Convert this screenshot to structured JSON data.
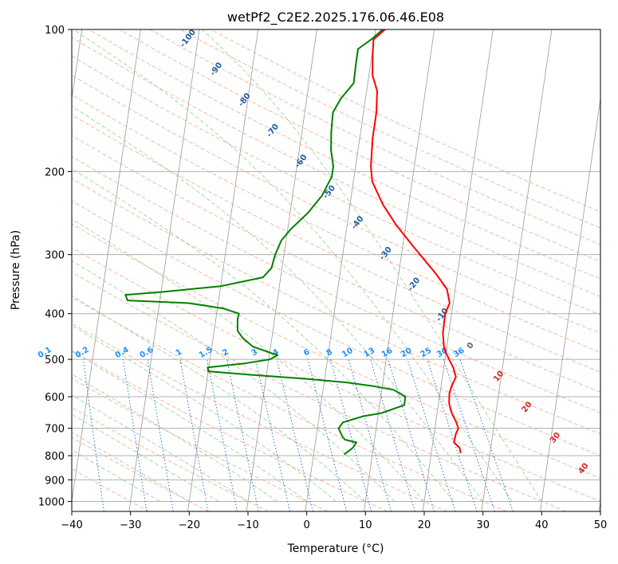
{
  "chart_data": {
    "type": "line",
    "title": "wetPf2_C2E2.2025.176.06.46.E08",
    "xlabel": "Temperature (°C)",
    "ylabel": "Pressure (hPa)",
    "xlim": [
      -40,
      50
    ],
    "ylim": [
      1050,
      100
    ],
    "y_scale": "log",
    "grid": true,
    "x_ticks": [
      -40,
      -30,
      -20,
      -10,
      0,
      10,
      20,
      30,
      40,
      50
    ],
    "y_ticks": [
      100,
      200,
      300,
      400,
      500,
      600,
      700,
      800,
      900,
      1000
    ],
    "series": [
      {
        "color": "#ff0000",
        "points": [
          [
            25.0,
            790
          ],
          [
            24.7,
            770
          ],
          [
            23.6,
            750
          ],
          [
            23.7,
            720
          ],
          [
            24.0,
            700
          ],
          [
            23.5,
            680
          ],
          [
            22.5,
            650
          ],
          [
            21.8,
            620
          ],
          [
            21.6,
            590
          ],
          [
            21.8,
            570
          ],
          [
            22.3,
            545
          ],
          [
            21.6,
            520
          ],
          [
            20.7,
            500
          ],
          [
            19.6,
            475
          ],
          [
            19.0,
            440
          ],
          [
            18.9,
            400
          ],
          [
            19.4,
            380
          ],
          [
            18.6,
            355
          ],
          [
            16.4,
            330
          ],
          [
            12.0,
            290
          ],
          [
            8.4,
            260
          ],
          [
            5.6,
            235
          ],
          [
            3.2,
            210
          ],
          [
            2.6,
            195
          ],
          [
            2.2,
            170
          ],
          [
            2.2,
            150
          ],
          [
            1.8,
            135
          ],
          [
            0.6,
            125
          ],
          [
            0.1,
            112
          ],
          [
            -0.1,
            105
          ],
          [
            1.6,
            100
          ]
        ]
      },
      {
        "color": "#008000",
        "points": [
          [
            5.2,
            795
          ],
          [
            6.5,
            770
          ],
          [
            7.0,
            750
          ],
          [
            5.0,
            740
          ],
          [
            4.5,
            730
          ],
          [
            3.6,
            700
          ],
          [
            4.2,
            680
          ],
          [
            7.5,
            660
          ],
          [
            10.5,
            650
          ],
          [
            14.2,
            625
          ],
          [
            14.2,
            600
          ],
          [
            12.0,
            580
          ],
          [
            8.5,
            570
          ],
          [
            4.0,
            560
          ],
          [
            -3.0,
            550
          ],
          [
            -12.0,
            540
          ],
          [
            -20.0,
            530
          ],
          [
            -20.2,
            520
          ],
          [
            -14.0,
            510
          ],
          [
            -9.8,
            500
          ],
          [
            -8.6,
            490
          ],
          [
            -13.0,
            470
          ],
          [
            -15.0,
            450
          ],
          [
            -16.0,
            435
          ],
          [
            -16.2,
            420
          ],
          [
            -16.3,
            410
          ],
          [
            -16.2,
            400
          ],
          [
            -19.0,
            390
          ],
          [
            -25.0,
            380
          ],
          [
            -35.5,
            375
          ],
          [
            -36.0,
            365
          ],
          [
            -30.0,
            360
          ],
          [
            -20.0,
            350
          ],
          [
            -13.0,
            335
          ],
          [
            -11.8,
            320
          ],
          [
            -11.5,
            300
          ],
          [
            -10.8,
            280
          ],
          [
            -9.5,
            265
          ],
          [
            -7.0,
            245
          ],
          [
            -5.0,
            225
          ],
          [
            -3.8,
            205
          ],
          [
            -3.8,
            195
          ],
          [
            -4.6,
            180
          ],
          [
            -5.0,
            165
          ],
          [
            -5.2,
            150
          ],
          [
            -4.2,
            140
          ],
          [
            -2.4,
            130
          ],
          [
            -2.5,
            118
          ],
          [
            -2.5,
            110
          ],
          [
            -0.5,
            105
          ],
          [
            1.2,
            100
          ]
        ]
      }
    ],
    "dry_adiabat_labels": [
      -100,
      -90,
      -80,
      -70,
      -60,
      -50,
      -40,
      -30,
      -20,
      -10,
      0,
      10,
      20,
      30,
      40
    ],
    "mixing_ratio_labels": [
      "0.1",
      "0.2",
      "0.4",
      "0.6",
      "1",
      "1.5",
      "2",
      "3",
      "4",
      "6",
      "8",
      "10",
      "13",
      "16",
      "20",
      "25",
      "30",
      "36"
    ],
    "mixing_ratio_values": [
      0.1,
      0.2,
      0.4,
      0.6,
      1,
      1.5,
      2,
      3,
      4,
      6,
      8,
      10,
      13,
      16,
      20,
      25,
      30,
      36
    ],
    "colors": {
      "isobar": "#b0b0b0",
      "isotherm": "#999999",
      "dry_adiabat": "#f4a582",
      "moist_adiabat": "#8fcf8f",
      "mixing_ratio": "#1f77d4",
      "dry_label_cold": "#1f5f9f",
      "dry_label_warm": "#d62728",
      "zero_label": "#666666",
      "mixing_label": "#1e90ff"
    }
  }
}
